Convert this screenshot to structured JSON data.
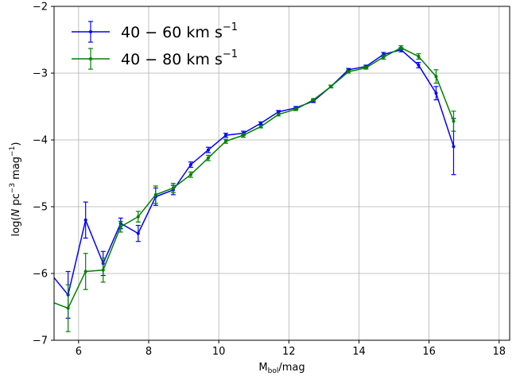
{
  "chart_data": {
    "type": "line",
    "title": "",
    "xlabel": "M_bol/mag",
    "xlabel_parts": {
      "main": "M",
      "sub": "bol",
      "rest": "/mag"
    },
    "ylabel": "log(N pc^-3 mag^-1)",
    "xlim": [
      5.3,
      18.3
    ],
    "ylim": [
      -7,
      -2
    ],
    "x_ticks": [
      6,
      8,
      10,
      12,
      14,
      16,
      18
    ],
    "y_ticks": [
      -7,
      -6,
      -5,
      -4,
      -3,
      -2
    ],
    "x_tick_labels": [
      "6",
      "8",
      "10",
      "12",
      "14",
      "16",
      "18"
    ],
    "y_tick_labels": [
      "−7",
      "−6",
      "−5",
      "−4",
      "−3",
      "−2"
    ],
    "grid": true,
    "legend_position": "top-left",
    "series": [
      {
        "name": "40 − 60 km s^−1",
        "legend_parts": {
          "main": "40 − 60 km s",
          "sup": "−1"
        },
        "color": "#0000ff",
        "points": [
          {
            "x": 5.2,
            "y": -6.0,
            "err": 0.1
          },
          {
            "x": 5.7,
            "y": -6.32,
            "err": 0.35
          },
          {
            "x": 6.2,
            "y": -5.2,
            "err": 0.27
          },
          {
            "x": 6.7,
            "y": -5.85,
            "err": 0.18
          },
          {
            "x": 7.2,
            "y": -5.25,
            "err": 0.08
          },
          {
            "x": 7.7,
            "y": -5.4,
            "err": 0.12
          },
          {
            "x": 8.2,
            "y": -4.85,
            "err": 0.13
          },
          {
            "x": 8.7,
            "y": -4.75,
            "err": 0.07
          },
          {
            "x": 9.2,
            "y": -4.37,
            "err": 0.04
          },
          {
            "x": 9.7,
            "y": -4.15,
            "err": 0.04
          },
          {
            "x": 10.2,
            "y": -3.93,
            "err": 0.03
          },
          {
            "x": 10.7,
            "y": -3.9,
            "err": 0.03
          },
          {
            "x": 11.2,
            "y": -3.75,
            "err": 0.02
          },
          {
            "x": 11.7,
            "y": -3.58,
            "err": 0.02
          },
          {
            "x": 12.2,
            "y": -3.52,
            "err": 0.02
          },
          {
            "x": 12.7,
            "y": -3.42,
            "err": 0.02
          },
          {
            "x": 13.2,
            "y": -3.2,
            "err": 0.02
          },
          {
            "x": 13.7,
            "y": -2.95,
            "err": 0.02
          },
          {
            "x": 14.2,
            "y": -2.9,
            "err": 0.02
          },
          {
            "x": 14.7,
            "y": -2.72,
            "err": 0.03
          },
          {
            "x": 15.2,
            "y": -2.65,
            "err": 0.03
          },
          {
            "x": 15.7,
            "y": -2.88,
            "err": 0.04
          },
          {
            "x": 16.2,
            "y": -3.3,
            "err": 0.1
          },
          {
            "x": 16.7,
            "y": -4.1,
            "err": 0.42
          }
        ]
      },
      {
        "name": "40 − 80 km s^−1",
        "legend_parts": {
          "main": "40 − 80 km s",
          "sup": "−1"
        },
        "color": "#008000",
        "points": [
          {
            "x": 5.2,
            "y": -6.42,
            "err": 0.55
          },
          {
            "x": 5.7,
            "y": -6.52,
            "err": 0.35
          },
          {
            "x": 6.2,
            "y": -5.97,
            "err": 0.27
          },
          {
            "x": 6.7,
            "y": -5.95,
            "err": 0.18
          },
          {
            "x": 7.2,
            "y": -5.3,
            "err": 0.08
          },
          {
            "x": 7.7,
            "y": -5.15,
            "err": 0.08
          },
          {
            "x": 8.2,
            "y": -4.82,
            "err": 0.13
          },
          {
            "x": 8.7,
            "y": -4.72,
            "err": 0.07
          },
          {
            "x": 9.2,
            "y": -4.52,
            "err": 0.04
          },
          {
            "x": 9.7,
            "y": -4.27,
            "err": 0.04
          },
          {
            "x": 10.2,
            "y": -4.02,
            "err": 0.03
          },
          {
            "x": 10.7,
            "y": -3.93,
            "err": 0.03
          },
          {
            "x": 11.2,
            "y": -3.8,
            "err": 0.02
          },
          {
            "x": 11.7,
            "y": -3.62,
            "err": 0.02
          },
          {
            "x": 12.2,
            "y": -3.54,
            "err": 0.02
          },
          {
            "x": 12.7,
            "y": -3.4,
            "err": 0.02
          },
          {
            "x": 13.2,
            "y": -3.2,
            "err": 0.02
          },
          {
            "x": 13.7,
            "y": -2.98,
            "err": 0.02
          },
          {
            "x": 14.2,
            "y": -2.92,
            "err": 0.02
          },
          {
            "x": 14.7,
            "y": -2.76,
            "err": 0.03
          },
          {
            "x": 15.2,
            "y": -2.62,
            "err": 0.03
          },
          {
            "x": 15.7,
            "y": -2.75,
            "err": 0.04
          },
          {
            "x": 16.2,
            "y": -3.05,
            "err": 0.1
          },
          {
            "x": 16.7,
            "y": -3.72,
            "err": 0.15
          }
        ]
      }
    ]
  }
}
